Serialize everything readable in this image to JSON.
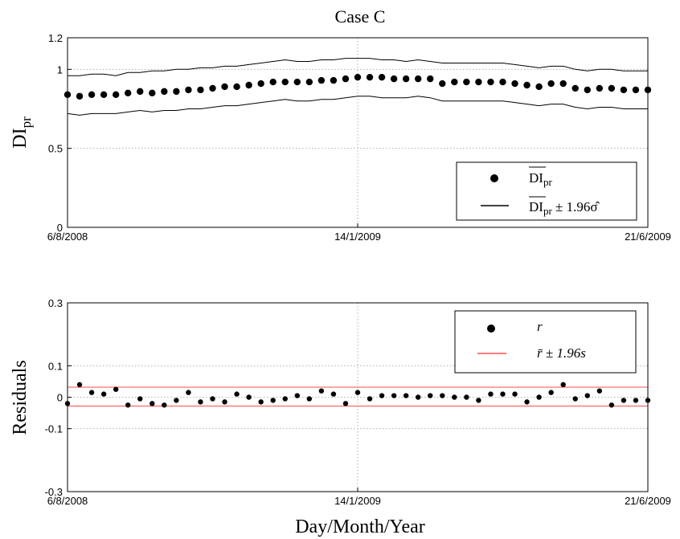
{
  "chart_data": [
    {
      "type": "scatter",
      "title": "Case C",
      "ylabel_main": "DI",
      "ylabel_sub": "pr",
      "xlabel": "",
      "xticks": [
        "6/8/2008",
        "14/1/2009",
        "21/6/2009"
      ],
      "xlim": [
        0,
        48
      ],
      "xtick_positions": [
        0,
        24,
        48
      ],
      "ylim": [
        0,
        1.2
      ],
      "yticks": [
        0,
        0.5,
        1,
        1.2
      ],
      "ytick_labels": [
        "0",
        "0.5",
        "1",
        "1.2"
      ],
      "grid": true,
      "legend_placement": "bottom-right",
      "legend": [
        {
          "symbol": "dot",
          "label_main": "DI",
          "label_sub": "pr",
          "label_tail": ""
        },
        {
          "symbol": "line",
          "label_main": "DI",
          "label_sub": "pr",
          "label_tail": " ± 1.96σ̂"
        }
      ],
      "x": [
        0,
        1,
        2,
        3,
        4,
        5,
        6,
        7,
        8,
        9,
        10,
        11,
        12,
        13,
        14,
        15,
        16,
        17,
        18,
        19,
        20,
        21,
        22,
        23,
        24,
        25,
        26,
        27,
        28,
        29,
        30,
        31,
        32,
        33,
        34,
        35,
        36,
        37,
        38,
        39,
        40,
        41,
        42,
        43,
        44,
        45,
        46,
        47,
        48
      ],
      "series": [
        {
          "values": [
            0.84,
            0.83,
            0.84,
            0.84,
            0.84,
            0.85,
            0.86,
            0.85,
            0.86,
            0.86,
            0.87,
            0.87,
            0.88,
            0.89,
            0.89,
            0.9,
            0.91,
            0.92,
            0.92,
            0.92,
            0.92,
            0.93,
            0.93,
            0.94,
            0.95,
            0.95,
            0.95,
            0.94,
            0.94,
            0.94,
            0.94,
            0.91,
            0.92,
            0.92,
            0.92,
            0.92,
            0.92,
            0.91,
            0.9,
            0.89,
            0.91,
            0.91,
            0.88,
            0.87,
            0.88,
            0.88,
            0.87,
            0.87,
            0.87
          ]
        },
        {
          "kind": "upper",
          "values": [
            0.96,
            0.96,
            0.97,
            0.97,
            0.96,
            0.98,
            0.98,
            0.99,
            0.99,
            1.0,
            1.0,
            1.01,
            1.01,
            1.02,
            1.02,
            1.03,
            1.04,
            1.05,
            1.06,
            1.05,
            1.05,
            1.06,
            1.06,
            1.07,
            1.07,
            1.07,
            1.06,
            1.06,
            1.05,
            1.06,
            1.05,
            1.04,
            1.04,
            1.04,
            1.04,
            1.04,
            1.04,
            1.03,
            1.02,
            1.01,
            1.02,
            1.02,
            1.0,
            0.99,
            1.0,
            1.0,
            0.99,
            0.99,
            0.99
          ]
        },
        {
          "kind": "lower",
          "values": [
            0.72,
            0.71,
            0.72,
            0.72,
            0.72,
            0.73,
            0.74,
            0.73,
            0.74,
            0.74,
            0.75,
            0.75,
            0.76,
            0.77,
            0.77,
            0.78,
            0.79,
            0.8,
            0.81,
            0.8,
            0.8,
            0.81,
            0.81,
            0.82,
            0.83,
            0.83,
            0.82,
            0.82,
            0.82,
            0.83,
            0.82,
            0.8,
            0.8,
            0.8,
            0.8,
            0.8,
            0.8,
            0.79,
            0.78,
            0.77,
            0.78,
            0.78,
            0.76,
            0.75,
            0.76,
            0.76,
            0.75,
            0.75,
            0.75
          ]
        }
      ]
    },
    {
      "type": "scatter",
      "title": "",
      "ylabel": "Residuals",
      "xlabel": "Day/Month/Year",
      "xticks": [
        "6/8/2008",
        "14/1/2009",
        "21/6/2009"
      ],
      "xlim": [
        0,
        48
      ],
      "xtick_positions": [
        0,
        24,
        48
      ],
      "ylim": [
        -0.3,
        0.3
      ],
      "yticks": [
        -0.3,
        -0.1,
        0,
        0.1,
        0.3
      ],
      "ytick_labels": [
        "-0.3",
        "-0.1",
        "0",
        "0.1",
        "0.3"
      ],
      "grid": true,
      "legend_placement": "top-right",
      "legend": [
        {
          "symbol": "dot",
          "label": "r"
        },
        {
          "symbol": "redline",
          "label": "r̄ ± 1.96s"
        }
      ],
      "bounds": [
        -0.028,
        0.032
      ],
      "bounds_color": "#ff4d4d",
      "x": [
        0,
        1,
        2,
        3,
        4,
        5,
        6,
        7,
        8,
        9,
        10,
        11,
        12,
        13,
        14,
        15,
        16,
        17,
        18,
        19,
        20,
        21,
        22,
        23,
        24,
        25,
        26,
        27,
        28,
        29,
        30,
        31,
        32,
        33,
        34,
        35,
        36,
        37,
        38,
        39,
        40,
        41,
        42,
        43,
        44,
        45,
        46,
        47,
        48
      ],
      "series": [
        {
          "values": [
            -0.02,
            0.04,
            0.015,
            0.01,
            0.025,
            -0.025,
            -0.005,
            -0.02,
            -0.025,
            -0.01,
            0.015,
            -0.015,
            -0.005,
            -0.015,
            0.01,
            0.0,
            -0.015,
            -0.01,
            -0.005,
            0.005,
            -0.005,
            0.02,
            0.01,
            -0.02,
            0.015,
            -0.005,
            0.005,
            0.005,
            0.005,
            0.0,
            0.005,
            0.005,
            0.0,
            0.0,
            -0.01,
            0.01,
            0.01,
            0.01,
            -0.015,
            0.0,
            0.015,
            0.04,
            -0.005,
            0.005,
            0.02,
            -0.025,
            -0.01,
            -0.01,
            -0.01
          ]
        }
      ]
    }
  ]
}
